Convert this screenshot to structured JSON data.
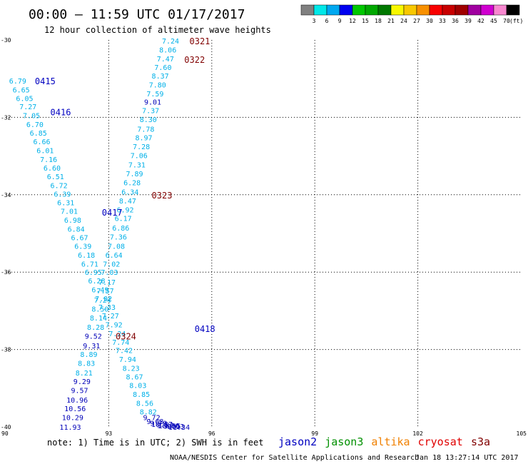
{
  "header": {
    "title": "00:00 – 11:59 UTC 01/17/2017",
    "subtitle": "12 hour collection of altimeter wave heights"
  },
  "legend": {
    "levels": [
      "3",
      "6",
      "9",
      "12",
      "15",
      "18",
      "21",
      "24",
      "27",
      "30",
      "33",
      "36",
      "39",
      "42",
      "45",
      "70"
    ],
    "unit": "(ft)",
    "colors": [
      "#808080",
      "#00e8e8",
      "#00a8f0",
      "#0000f0",
      "#00c800",
      "#00a800",
      "#007800",
      "#f8f800",
      "#f8c800",
      "#f89000",
      "#f80000",
      "#c80000",
      "#a00000",
      "#a000a0",
      "#d000d0",
      "#f888d0",
      "#000000"
    ]
  },
  "axes": {
    "x_ticks": [
      "90",
      "93",
      "96",
      "99",
      "102",
      "105"
    ],
    "y_ticks": [
      "-30",
      "-32",
      "-34",
      "-36",
      "-38",
      "-40"
    ]
  },
  "map": {
    "lon_range": [
      90,
      105
    ],
    "lat_range": [
      -40,
      -30
    ],
    "grid_lons": [
      93,
      96,
      99,
      102
    ],
    "grid_lats": [
      -32,
      -34,
      -36,
      -38
    ],
    "tracks": [
      {
        "id": "0321",
        "lat": -30.02,
        "lon": 95.65,
        "color": "#800000"
      },
      {
        "id": "0322",
        "lat": -30.5,
        "lon": 95.5,
        "color": "#800000"
      },
      {
        "id": "0415",
        "lat": -31.05,
        "lon": 91.15,
        "color": "#0000c0"
      },
      {
        "id": "0416",
        "lat": -31.85,
        "lon": 91.6,
        "color": "#0000c0"
      },
      {
        "id": "0323",
        "lat": -34.0,
        "lon": 94.55,
        "color": "#800000"
      },
      {
        "id": "0417",
        "lat": -34.45,
        "lon": 93.1,
        "color": "#0000c0"
      },
      {
        "id": "0418",
        "lat": -37.45,
        "lon": 95.8,
        "color": "#0000c0"
      },
      {
        "id": "0324",
        "lat": -37.65,
        "lon": 93.5,
        "color": "#800000"
      }
    ],
    "points": [
      {
        "v": "7.24",
        "lat": -30.02,
        "lon": 94.8
      },
      {
        "v": "8.06",
        "lat": -30.25,
        "lon": 94.72
      },
      {
        "v": "7.47",
        "lat": -30.48,
        "lon": 94.65
      },
      {
        "v": "7.60",
        "lat": -30.7,
        "lon": 94.58
      },
      {
        "v": "8.37",
        "lat": -30.92,
        "lon": 94.5
      },
      {
        "v": "7.80",
        "lat": -31.15,
        "lon": 94.42
      },
      {
        "v": "7.59",
        "lat": -31.38,
        "lon": 94.35
      },
      {
        "v": "9.01",
        "lat": -31.6,
        "lon": 94.28
      },
      {
        "v": "7.37",
        "lat": -31.82,
        "lon": 94.22
      },
      {
        "v": "8.30",
        "lat": -32.05,
        "lon": 94.15
      },
      {
        "v": "7.78",
        "lat": -32.3,
        "lon": 94.08
      },
      {
        "v": "8.97",
        "lat": -32.52,
        "lon": 94.02
      },
      {
        "v": "7.28",
        "lat": -32.75,
        "lon": 93.95
      },
      {
        "v": "7.06",
        "lat": -32.98,
        "lon": 93.88
      },
      {
        "v": "7.31",
        "lat": -33.22,
        "lon": 93.82
      },
      {
        "v": "7.89",
        "lat": -33.45,
        "lon": 93.75
      },
      {
        "v": "6.28",
        "lat": -33.68,
        "lon": 93.68
      },
      {
        "v": "6.34",
        "lat": -33.92,
        "lon": 93.62
      },
      {
        "v": "8.47",
        "lat": -34.15,
        "lon": 93.55
      },
      {
        "v": "6.92",
        "lat": -34.38,
        "lon": 93.48
      },
      {
        "v": "6.17",
        "lat": -34.6,
        "lon": 93.42
      },
      {
        "v": "6.86",
        "lat": -34.85,
        "lon": 93.35
      },
      {
        "v": "7.36",
        "lat": -35.08,
        "lon": 93.28
      },
      {
        "v": "7.08",
        "lat": -35.32,
        "lon": 93.22
      },
      {
        "v": "6.64",
        "lat": -35.55,
        "lon": 93.15
      },
      {
        "v": "7.02",
        "lat": -35.78,
        "lon": 93.08
      },
      {
        "v": "7.03",
        "lat": -36.0,
        "lon": 93.02
      },
      {
        "v": "7.17",
        "lat": -36.25,
        "lon": 92.95
      },
      {
        "v": "7.57",
        "lat": -36.48,
        "lon": 92.9
      },
      {
        "v": "7.24",
        "lat": -36.72,
        "lon": 92.82
      },
      {
        "v": "8.50",
        "lat": -36.95,
        "lon": 92.75
      },
      {
        "v": "8.14",
        "lat": -37.18,
        "lon": 92.7
      },
      {
        "v": "8.28",
        "lat": -37.42,
        "lon": 92.62
      },
      {
        "v": "9.52",
        "lat": -37.65,
        "lon": 92.55
      },
      {
        "v": "9.31",
        "lat": -37.9,
        "lon": 92.5
      },
      {
        "v": "8.89",
        "lat": -38.12,
        "lon": 92.42
      },
      {
        "v": "8.83",
        "lat": -38.35,
        "lon": 92.35
      },
      {
        "v": "8.21",
        "lat": -38.6,
        "lon": 92.28
      },
      {
        "v": "9.29",
        "lat": -38.82,
        "lon": 92.22
      },
      {
        "v": "9.57",
        "lat": -39.05,
        "lon": 92.15
      },
      {
        "v": "10.96",
        "lat": -39.3,
        "lon": 92.08
      },
      {
        "v": "10.56",
        "lat": -39.52,
        "lon": 92.02
      },
      {
        "v": "10.29",
        "lat": -39.75,
        "lon": 91.95
      },
      {
        "v": "11.93",
        "lat": -40.0,
        "lon": 91.88
      },
      {
        "v": "6.79",
        "lat": -31.05,
        "lon": 90.35
      },
      {
        "v": "6.65",
        "lat": -31.28,
        "lon": 90.45
      },
      {
        "v": "6.05",
        "lat": -31.5,
        "lon": 90.55
      },
      {
        "v": "7.27",
        "lat": -31.72,
        "lon": 90.65
      },
      {
        "v": "7.05",
        "lat": -31.95,
        "lon": 90.75
      },
      {
        "v": "6.70",
        "lat": -32.18,
        "lon": 90.85
      },
      {
        "v": "6.85",
        "lat": -32.4,
        "lon": 90.95
      },
      {
        "v": "6.66",
        "lat": -32.62,
        "lon": 91.05
      },
      {
        "v": "6.01",
        "lat": -32.85,
        "lon": 91.15
      },
      {
        "v": "7.16",
        "lat": -33.08,
        "lon": 91.25
      },
      {
        "v": "6.60",
        "lat": -33.3,
        "lon": 91.35
      },
      {
        "v": "6.51",
        "lat": -33.52,
        "lon": 91.45
      },
      {
        "v": "6.72",
        "lat": -33.75,
        "lon": 91.55
      },
      {
        "v": "6.39",
        "lat": -33.98,
        "lon": 91.65
      },
      {
        "v": "6.31",
        "lat": -34.2,
        "lon": 91.75
      },
      {
        "v": "7.01",
        "lat": -34.42,
        "lon": 91.85
      },
      {
        "v": "6.98",
        "lat": -34.65,
        "lon": 91.95
      },
      {
        "v": "6.84",
        "lat": -34.88,
        "lon": 92.05
      },
      {
        "v": "6.67",
        "lat": -35.1,
        "lon": 92.15
      },
      {
        "v": "6.39",
        "lat": -35.32,
        "lon": 92.25
      },
      {
        "v": "6.18",
        "lat": -35.55,
        "lon": 92.35
      },
      {
        "v": "6.71",
        "lat": -35.78,
        "lon": 92.45
      },
      {
        "v": "6.95",
        "lat": -36.0,
        "lon": 92.55
      },
      {
        "v": "6.28",
        "lat": -36.22,
        "lon": 92.65
      },
      {
        "v": "6.49",
        "lat": -36.45,
        "lon": 92.75
      },
      {
        "v": "7.02",
        "lat": -36.68,
        "lon": 92.85
      },
      {
        "v": "7.33",
        "lat": -36.9,
        "lon": 92.95
      },
      {
        "v": "7.27",
        "lat": -37.12,
        "lon": 93.05
      },
      {
        "v": "7.92",
        "lat": -37.35,
        "lon": 93.15
      },
      {
        "v": "7.24",
        "lat": -37.58,
        "lon": 93.25
      },
      {
        "v": "7.74",
        "lat": -37.8,
        "lon": 93.35
      },
      {
        "v": "7.42",
        "lat": -38.02,
        "lon": 93.45
      },
      {
        "v": "7.94",
        "lat": -38.25,
        "lon": 93.55
      },
      {
        "v": "8.23",
        "lat": -38.48,
        "lon": 93.65
      },
      {
        "v": "8.67",
        "lat": -38.7,
        "lon": 93.75
      },
      {
        "v": "8.03",
        "lat": -38.92,
        "lon": 93.85
      },
      {
        "v": "8.85",
        "lat": -39.15,
        "lon": 93.95
      },
      {
        "v": "8.56",
        "lat": -39.38,
        "lon": 94.05
      },
      {
        "v": "8.82",
        "lat": -39.6,
        "lon": 94.15
      },
      {
        "v": "9.72",
        "lat": -39.75,
        "lon": 94.25
      },
      {
        "v": "9.68",
        "lat": -39.85,
        "lon": 94.35
      },
      {
        "v": "9.79",
        "lat": -39.9,
        "lon": 94.45
      },
      {
        "v": "10.57",
        "lat": -39.93,
        "lon": 94.55
      },
      {
        "v": "9.82",
        "lat": -39.95,
        "lon": 94.65
      },
      {
        "v": "10.06",
        "lat": -39.96,
        "lon": 94.75
      },
      {
        "v": "9.65",
        "lat": -39.97,
        "lon": 94.85
      },
      {
        "v": "9.93",
        "lat": -39.98,
        "lon": 94.95
      },
      {
        "v": "11.34",
        "lat": -40.0,
        "lon": 95.05
      }
    ]
  },
  "footer": {
    "note": "note: 1) Time is in UTC; 2) SWH is in feet",
    "satellites": [
      {
        "name": "jason2",
        "color": "#0000c0"
      },
      {
        "name": "jason3",
        "color": "#009000"
      },
      {
        "name": "altika",
        "color": "#f08000"
      },
      {
        "name": "cryosat",
        "color": "#e00000"
      },
      {
        "name": "s3a",
        "color": "#800000"
      }
    ],
    "credit": "NOAA/NESDIS Center for Satellite Applications and Research",
    "timestamp": "Jan 18 13:27:14 UTC 2017"
  }
}
